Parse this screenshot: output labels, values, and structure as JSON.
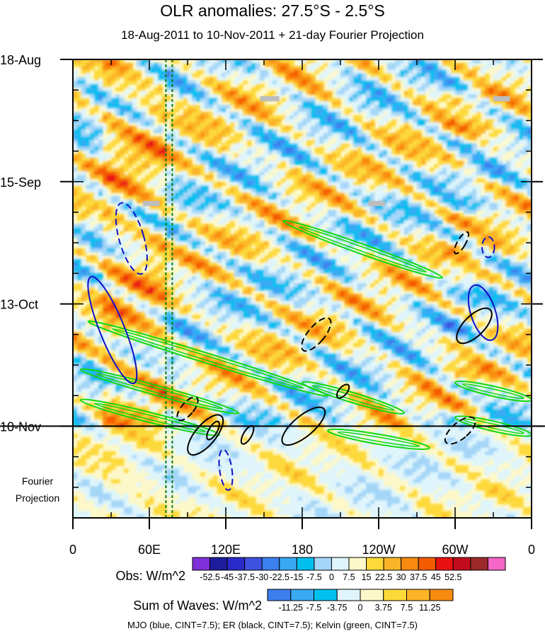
{
  "chart_data": {
    "type": "heatmap",
    "title": "OLR anomalies: 27.5°S - 2.5°S",
    "subtitle": "18-Aug-2011 to 10-Nov-2011 + 21-day Fourier Projection",
    "x_ticks": [
      "0",
      "60E",
      "120E",
      "180",
      "120W",
      "60W",
      "0"
    ],
    "x_tick_lons": [
      0,
      60,
      120,
      180,
      240,
      300,
      360
    ],
    "y_ticks": [
      "18-Aug",
      "15-Sep",
      "13-Oct",
      "10-Nov"
    ],
    "y_tick_days": [
      0,
      28,
      56,
      84
    ],
    "total_days": 105,
    "projection_start_day": 84,
    "projection_label_line1": "Fourier",
    "projection_label_line2": "Projection",
    "obs_colorbar": {
      "label": "Obs: W/m^2",
      "tick_labels": [
        "-52.5",
        "-45",
        "-37.5",
        "-30",
        "-22.5",
        "-15",
        "-7.5",
        "0",
        "7.5",
        "15",
        "22.5",
        "30",
        "37.5",
        "45",
        "52.5"
      ],
      "colors": [
        "#7e2fd8",
        "#1c1c9c",
        "#2a2acb",
        "#3e52e0",
        "#3c7fef",
        "#38a9f4",
        "#00c0f0",
        "#a4d6f8",
        "#dff5fb",
        "#fdf8c9",
        "#fdd93a",
        "#fbb427",
        "#f98b10",
        "#f55c00",
        "#e81212",
        "#c20c1d",
        "#9c2a2a",
        "#f467c6"
      ]
    },
    "waves_colorbar": {
      "label": "Sum of Waves: W/m^2",
      "tick_labels": [
        "-11.25",
        "-7.5",
        "-3.75",
        "0",
        "3.75",
        "7.5",
        "11.25"
      ],
      "colors": [
        "#3c7fef",
        "#38a9f4",
        "#00c0f0",
        "#dff5fb",
        "#fdf8c9",
        "#fdd93a",
        "#fbb427",
        "#f98b10"
      ]
    },
    "legend_text": "MJO (blue, CINT=7.5); ER (black, CINT=7.5); Kelvin (green, CINT=7.5)",
    "series": [
      {
        "name": "Obs OLR anomaly",
        "field": "shaded"
      },
      {
        "name": "MJO",
        "color": "#1010c8"
      },
      {
        "name": "ER",
        "color": "#000000"
      },
      {
        "name": "Kelvin",
        "color": "#10d810"
      }
    ],
    "reference_lines_lon": [
      73,
      78
    ],
    "mjo_contours": [
      {
        "lon": 31,
        "day": 62,
        "rx": 6,
        "ry": 28,
        "rot": -22,
        "dashed": false
      },
      {
        "lon": 46,
        "day": 41,
        "rx": 6,
        "ry": 18,
        "rot": -16,
        "dashed": true
      },
      {
        "lon": 322,
        "day": 58,
        "rx": 6,
        "ry": 14,
        "rot": -18,
        "dashed": false
      },
      {
        "lon": 326,
        "day": 43,
        "rx": 3,
        "ry": 5,
        "rot": 0,
        "dashed": true
      },
      {
        "lon": 120,
        "day": 94,
        "rx": 3,
        "ry": 10,
        "rot": -8,
        "dashed": true
      }
    ],
    "er_contours": [
      {
        "lon": 104,
        "day": 86,
        "rx": 5,
        "ry": 12,
        "rot": 40,
        "dashed": false
      },
      {
        "lon": 90,
        "day": 80,
        "rx": 3,
        "ry": 7,
        "rot": 40,
        "dashed": true
      },
      {
        "lon": 110,
        "day": 85,
        "rx": 2,
        "ry": 5,
        "rot": 30,
        "dashed": false
      },
      {
        "lon": 137,
        "day": 86,
        "rx": 2,
        "ry": 5,
        "rot": 30,
        "dashed": false
      },
      {
        "lon": 181,
        "day": 84,
        "rx": 5,
        "ry": 13,
        "rot": 50,
        "dashed": false
      },
      {
        "lon": 212,
        "day": 76,
        "rx": 2,
        "ry": 4,
        "rot": 40,
        "dashed": false
      },
      {
        "lon": 191,
        "day": 63,
        "rx": 4,
        "ry": 10,
        "rot": 40,
        "dashed": true
      },
      {
        "lon": 304,
        "day": 85,
        "rx": 4,
        "ry": 9,
        "rot": 50,
        "dashed": true
      },
      {
        "lon": 315,
        "day": 61,
        "rx": 5,
        "ry": 11,
        "rot": 45,
        "dashed": false
      },
      {
        "lon": 305,
        "day": 42,
        "rx": 2,
        "ry": 6,
        "rot": 30,
        "dashed": true
      }
    ],
    "kelvin_bands": [
      {
        "lon": 12,
        "day": 60,
        "lon_end": 200,
        "day_end": 77
      },
      {
        "lon": 6,
        "day": 71,
        "lon_end": 130,
        "day_end": 81
      },
      {
        "lon": 6,
        "day": 78,
        "lon_end": 115,
        "day_end": 86
      },
      {
        "lon": 165,
        "day": 37,
        "lon_end": 290,
        "day_end": 50
      },
      {
        "lon": 180,
        "day": 74,
        "lon_end": 260,
        "day_end": 81
      },
      {
        "lon": 300,
        "day": 74,
        "lon_end": 360,
        "day_end": 78
      },
      {
        "lon": 300,
        "day": 82,
        "lon_end": 360,
        "day_end": 86
      },
      {
        "lon": 200,
        "day": 85,
        "lon_end": 280,
        "day_end": 89
      }
    ],
    "missing_data": [
      {
        "lon": 147,
        "day": 8.4,
        "lon_end": 162,
        "day_end": 9.6
      },
      {
        "lon": 330,
        "day": 8.4,
        "lon_end": 343,
        "day_end": 9.6
      },
      {
        "lon": 55,
        "day": 32.4,
        "lon_end": 68,
        "day_end": 33.6
      },
      {
        "lon": 232,
        "day": 32.4,
        "lon_end": 245,
        "day_end": 33.6
      }
    ]
  }
}
